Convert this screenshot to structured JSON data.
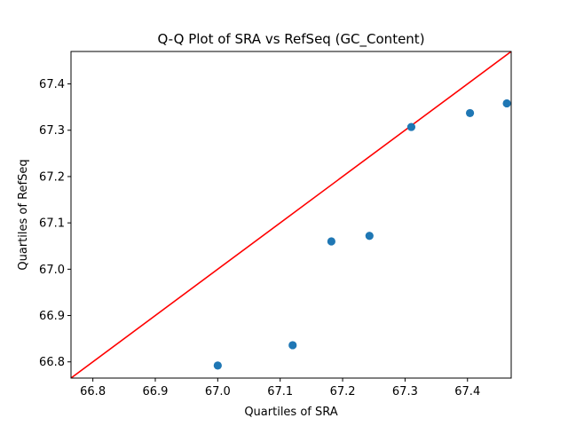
{
  "chart_data": {
    "type": "scatter",
    "title": "Q-Q Plot of SRA vs RefSeq (GC_Content)",
    "xlabel": "Quartiles of SRA",
    "ylabel": "Quartiles of RefSeq",
    "xlim": [
      66.765,
      67.47
    ],
    "ylim": [
      66.765,
      67.47
    ],
    "x_ticks": [
      "66.8",
      "66.9",
      "67.0",
      "67.1",
      "67.2",
      "67.3",
      "67.4"
    ],
    "y_ticks": [
      "66.8",
      "66.9",
      "67.0",
      "67.1",
      "67.2",
      "67.3",
      "67.4"
    ],
    "grid": false,
    "series": [
      {
        "type": "scatter",
        "x": [
          67.0,
          67.12,
          67.182,
          67.243,
          67.31,
          67.404,
          67.463
        ],
        "y": [
          66.792,
          66.836,
          67.06,
          67.072,
          67.307,
          67.337,
          67.358
        ],
        "color": "#1f77b4"
      },
      {
        "type": "line",
        "x": [
          66.765,
          67.47
        ],
        "y": [
          66.765,
          67.47
        ],
        "color": "#ff0000"
      }
    ]
  }
}
